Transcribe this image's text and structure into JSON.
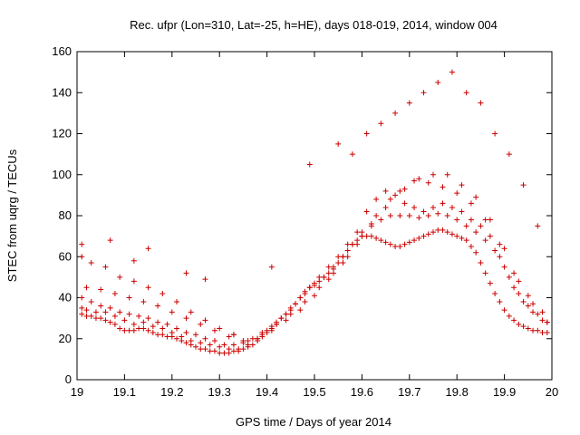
{
  "chart_data": {
    "type": "scatter",
    "title": "Rec. ufpr (Lon=310, Lat=-25, h=HE), days 018-019, 2014, window 004",
    "xlabel": "GPS time / Days of year 2014",
    "ylabel": "STEC from uqrg / TECUs",
    "xlim": [
      19,
      20
    ],
    "ylim": [
      0,
      160
    ],
    "xticks": [
      19,
      19.1,
      19.2,
      19.3,
      19.4,
      19.5,
      19.6,
      19.7,
      19.8,
      19.9,
      20
    ],
    "xtick_labels": [
      "19",
      "19.1",
      "19.2",
      "19.3",
      "19.4",
      "19.5",
      "19.6",
      "19.7",
      "19.8",
      "19.9",
      "20"
    ],
    "yticks": [
      0,
      20,
      40,
      60,
      80,
      100,
      120,
      140,
      160
    ],
    "ytick_labels": [
      "0",
      "20",
      "40",
      "60",
      "80",
      "100",
      "120",
      "140",
      "160"
    ],
    "grid": false,
    "legend": "none",
    "marker": "plus",
    "color": "#cc0000",
    "series": [
      {
        "x": [
          19.01,
          19.02,
          19.03,
          19.04,
          19.05,
          19.06,
          19.07,
          19.08,
          19.09,
          19.1,
          19.11,
          19.12,
          19.13,
          19.14,
          19.15,
          19.16,
          19.17,
          19.18,
          19.19,
          19.2,
          19.21,
          19.22,
          19.23,
          19.24,
          19.25,
          19.26,
          19.27,
          19.28,
          19.29,
          19.3,
          19.31,
          19.32,
          19.33,
          19.34,
          19.35,
          19.36,
          19.37,
          19.38,
          19.39,
          19.4,
          19.41,
          19.42,
          19.43,
          19.44,
          19.45,
          19.46,
          19.47,
          19.48,
          19.49,
          19.5,
          19.51,
          19.52,
          19.53,
          19.54,
          19.55,
          19.56,
          19.57,
          19.58,
          19.59,
          19.6,
          19.61,
          19.62,
          19.63,
          19.64,
          19.65,
          19.66,
          19.67,
          19.68,
          19.69,
          19.7,
          19.71,
          19.72,
          19.73,
          19.74,
          19.75,
          19.76,
          19.77,
          19.78,
          19.79,
          19.8,
          19.81,
          19.82,
          19.83,
          19.84,
          19.85,
          19.86,
          19.87,
          19.88,
          19.89,
          19.9,
          19.91,
          19.92,
          19.93,
          19.94,
          19.95,
          19.96,
          19.97,
          19.98,
          19.99,
          19.01,
          19.02,
          19.04,
          19.06,
          19.08,
          19.1,
          19.12,
          19.14,
          19.16,
          19.18,
          19.2,
          19.22,
          19.24,
          19.26,
          19.28,
          19.3,
          19.32,
          19.34,
          19.36,
          19.38,
          19.4,
          19.42,
          19.44,
          19.46,
          19.48,
          19.5,
          19.52,
          19.54,
          19.56,
          19.58,
          19.6,
          19.62,
          19.64,
          19.66,
          19.68,
          19.7,
          19.72,
          19.74,
          19.76,
          19.78,
          19.8,
          19.82,
          19.84,
          19.86,
          19.88,
          19.9,
          19.92,
          19.94,
          19.96,
          19.98,
          19.01,
          19.03,
          19.05,
          19.07,
          19.09,
          19.11,
          19.13,
          19.15,
          19.17,
          19.19,
          19.21,
          19.23,
          19.25,
          19.27,
          19.29,
          19.31,
          19.33,
          19.35,
          19.37,
          19.39,
          19.41,
          19.43,
          19.45,
          19.47,
          19.49,
          19.51,
          19.53,
          19.55,
          19.57,
          19.59,
          19.61,
          19.63,
          19.65,
          19.67,
          19.69,
          19.71,
          19.73,
          19.75,
          19.77,
          19.79,
          19.81,
          19.83,
          19.85,
          19.87,
          19.89,
          19.91,
          19.93,
          19.95,
          19.97,
          19.99,
          19.02,
          19.05,
          19.08,
          19.11,
          19.14,
          19.17,
          19.2,
          19.23,
          19.26,
          19.29,
          19.32,
          19.35,
          19.38,
          19.41,
          19.44,
          19.47,
          19.5,
          19.53,
          19.56,
          19.59,
          19.62,
          19.65,
          19.68,
          19.71,
          19.74,
          19.77,
          19.8,
          19.83,
          19.86,
          19.89,
          19.92,
          19.95,
          19.98,
          19.01,
          19.03,
          19.06,
          19.09,
          19.12,
          19.15,
          19.18,
          19.21,
          19.24,
          19.27,
          19.3,
          19.33,
          19.36,
          19.39,
          19.42,
          19.45,
          19.48,
          19.51,
          19.54,
          19.57,
          19.6,
          19.63,
          19.66,
          19.69,
          19.72,
          19.75,
          19.78,
          19.81,
          19.84,
          19.87,
          19.9,
          19.93,
          19.96,
          19.99,
          19.01,
          19.07,
          19.12,
          19.15,
          19.23,
          19.27,
          19.33,
          19.41,
          19.49,
          19.55,
          19.58,
          19.61,
          19.64,
          19.67,
          19.7,
          19.73,
          19.76,
          19.79,
          19.82,
          19.85,
          19.88,
          19.91,
          19.94,
          19.97
        ],
        "y": [
          32,
          31,
          31,
          30,
          30,
          29,
          28,
          27,
          25,
          24,
          24,
          24,
          25,
          25,
          24,
          23,
          22,
          22,
          21,
          21,
          20,
          19,
          18,
          17,
          16,
          15,
          15,
          14,
          14,
          13,
          13,
          13,
          14,
          14,
          15,
          16,
          17,
          19,
          21,
          23,
          25,
          27,
          30,
          32,
          34,
          37,
          40,
          43,
          45,
          47,
          48,
          50,
          52,
          54,
          57,
          60,
          63,
          66,
          68,
          70,
          70,
          70,
          69,
          68,
          67,
          66,
          65,
          65,
          66,
          67,
          68,
          69,
          70,
          71,
          72,
          73,
          73,
          72,
          71,
          70,
          69,
          68,
          65,
          62,
          57,
          52,
          47,
          42,
          38,
          34,
          31,
          29,
          27,
          26,
          25,
          24,
          24,
          23,
          23,
          35,
          34,
          33,
          33,
          31,
          29,
          27,
          28,
          26,
          25,
          23,
          21,
          19,
          18,
          17,
          16,
          15,
          15,
          17,
          20,
          24,
          28,
          32,
          37,
          42,
          46,
          50,
          55,
          60,
          66,
          72,
          76,
          78,
          80,
          80,
          80,
          79,
          80,
          81,
          80,
          78,
          75,
          72,
          68,
          63,
          55,
          45,
          38,
          33,
          29,
          40,
          38,
          36,
          35,
          33,
          32,
          31,
          30,
          28,
          27,
          25,
          23,
          22,
          20,
          19,
          17,
          17,
          18,
          20,
          23,
          26,
          30,
          35,
          40,
          45,
          50,
          55,
          60,
          66,
          72,
          82,
          88,
          92,
          90,
          86,
          84,
          82,
          84,
          86,
          84,
          82,
          78,
          75,
          70,
          60,
          50,
          42,
          36,
          32,
          28,
          45,
          44,
          42,
          40,
          38,
          36,
          33,
          30,
          27,
          24,
          21,
          19,
          20,
          24,
          29,
          34,
          41,
          49,
          57,
          66,
          75,
          84,
          92,
          97,
          96,
          94,
          91,
          86,
          78,
          66,
          52,
          41,
          33,
          60,
          57,
          55,
          50,
          48,
          45,
          42,
          38,
          33,
          29,
          25,
          22,
          19,
          22,
          27,
          32,
          38,
          45,
          52,
          60,
          70,
          80,
          88,
          93,
          98,
          100,
          100,
          95,
          89,
          78,
          64,
          48,
          37,
          28,
          66,
          68,
          58,
          64,
          52,
          49,
          22,
          55,
          105,
          115,
          110,
          120,
          125,
          130,
          135,
          140,
          145,
          150,
          140,
          135,
          120,
          110,
          95,
          75
        ]
      }
    ]
  }
}
